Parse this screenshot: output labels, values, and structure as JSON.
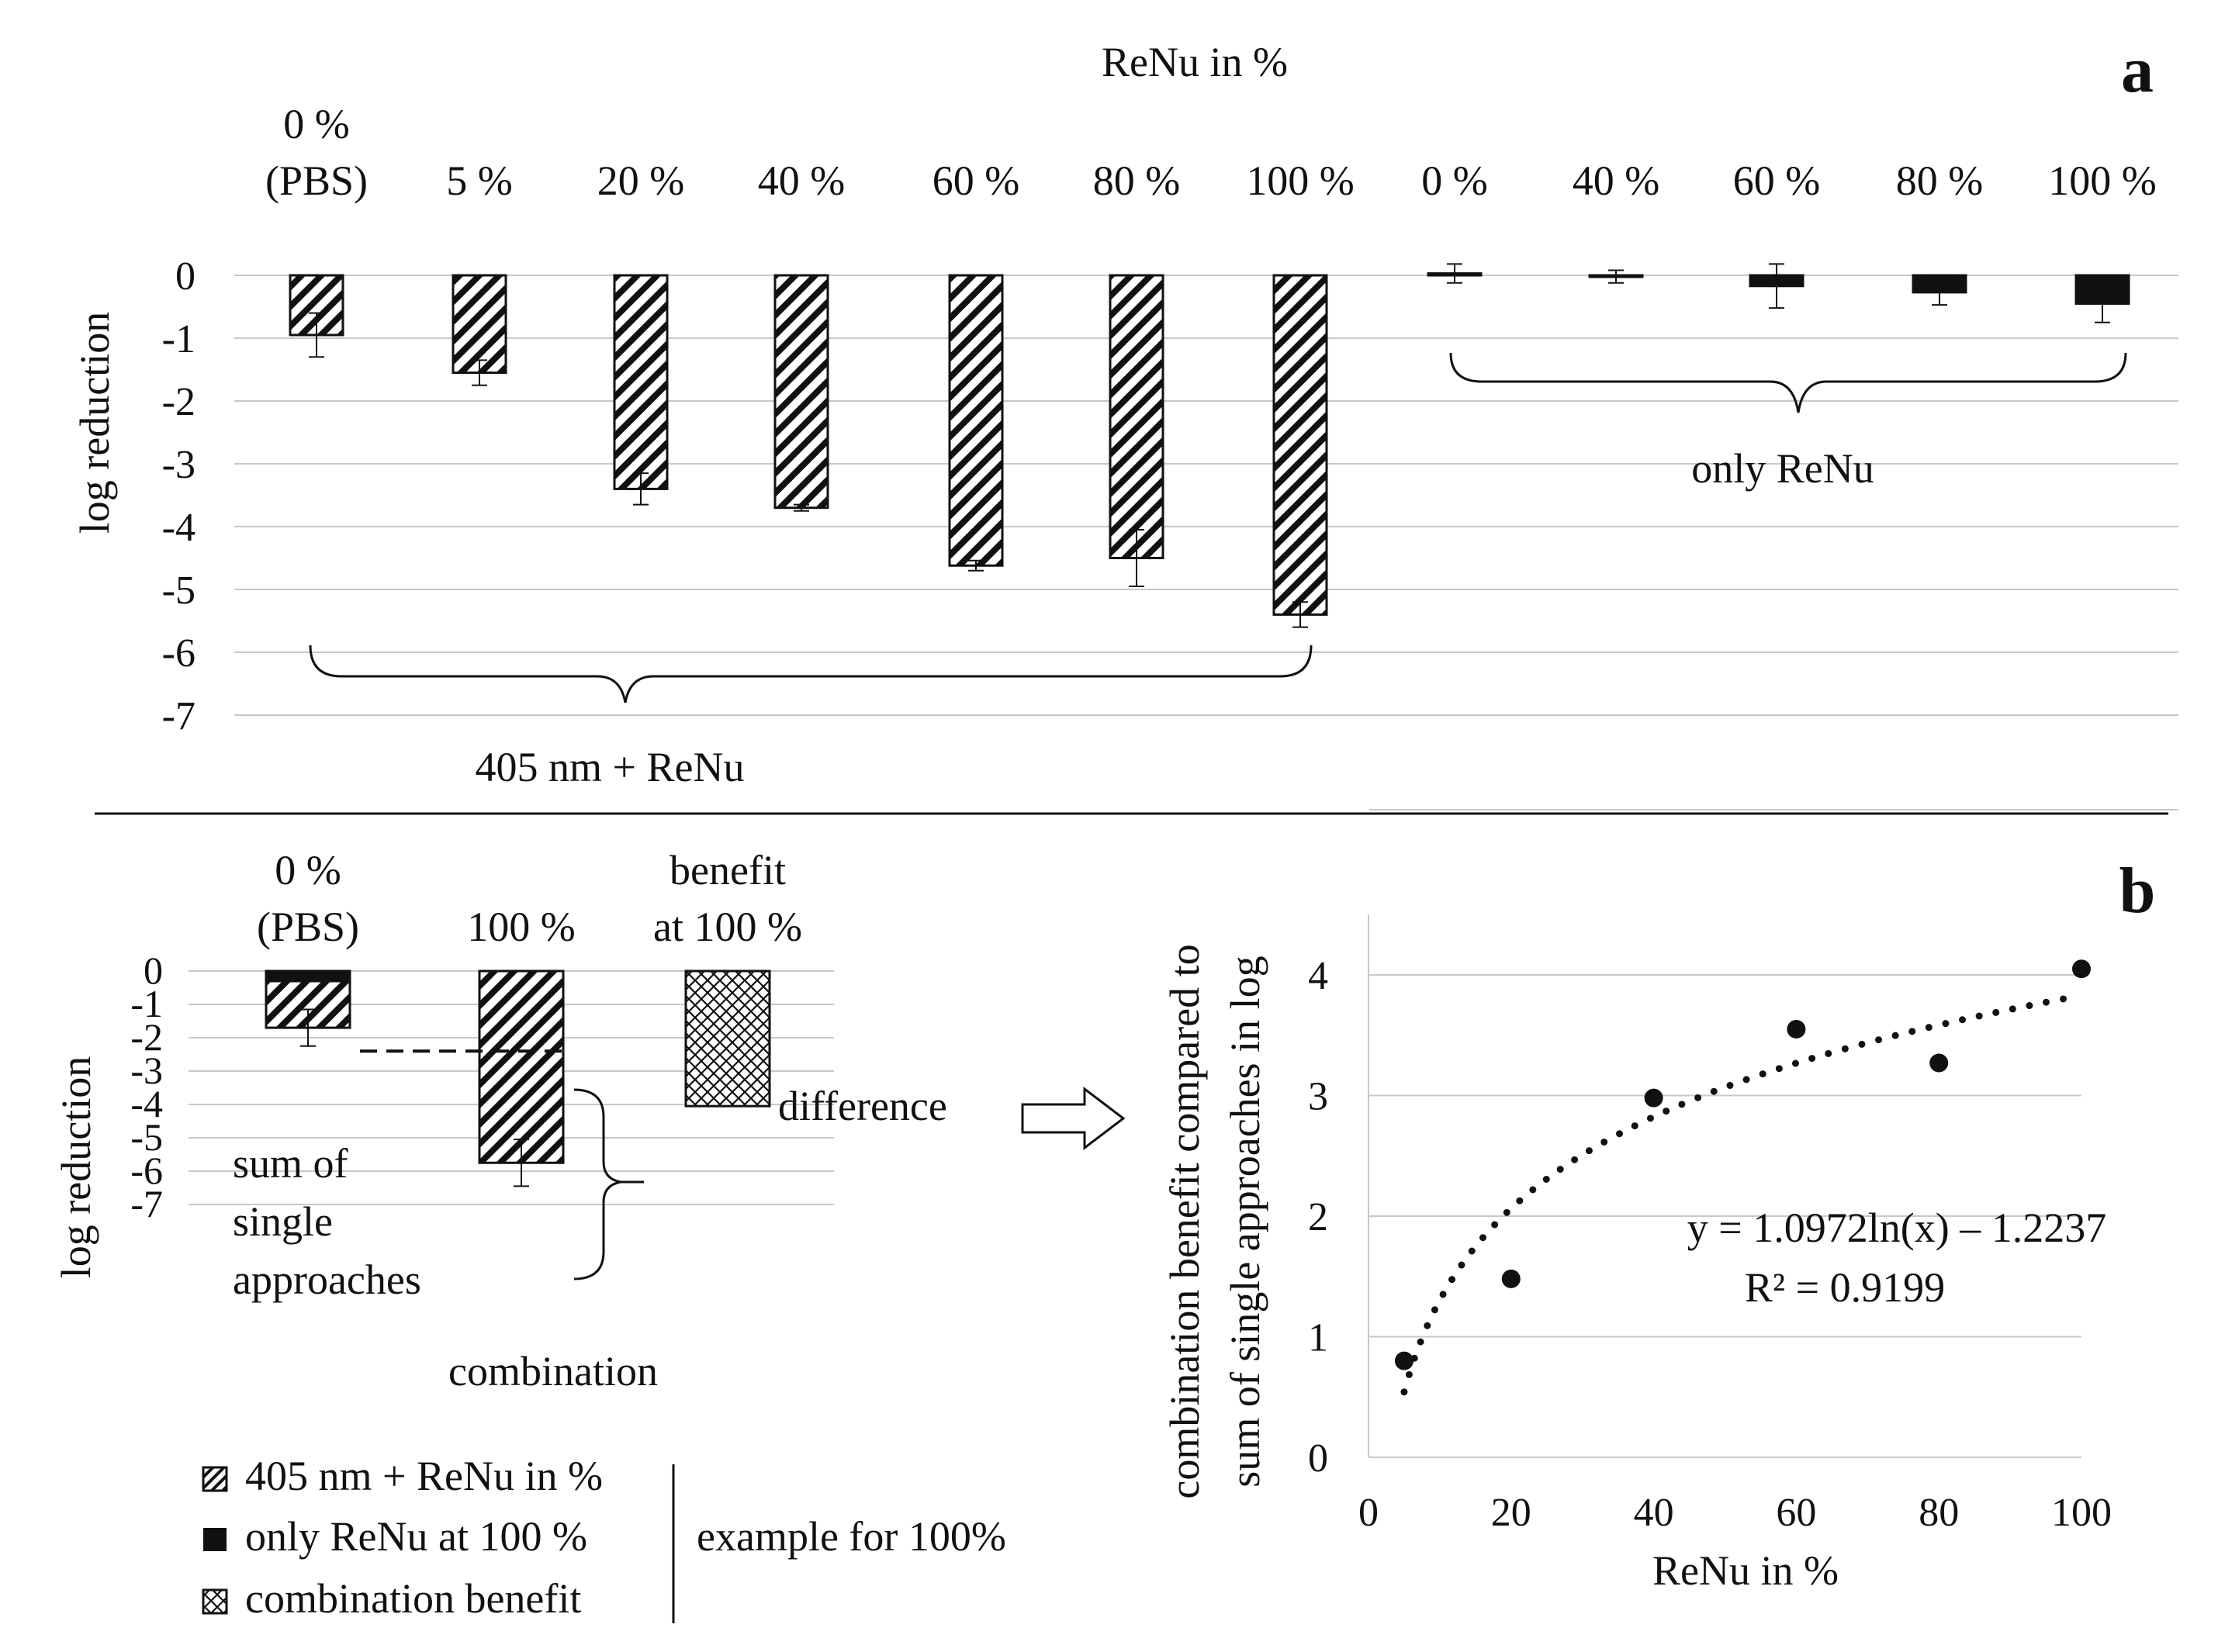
{
  "colors": {
    "ink": "#111111",
    "grid": "#c8c8c8",
    "background": "#ffffff"
  },
  "chart_data": [
    {
      "panel": "a",
      "type": "bar",
      "title": "ReNu in %",
      "panel_label": "a",
      "ylabel": "log reduction",
      "ylim": [
        -7,
        0
      ],
      "yticks": [
        0,
        -1,
        -2,
        -3,
        -4,
        -5,
        -6,
        -7
      ],
      "grid": true,
      "groups": [
        {
          "name": "405 nm + ReNu",
          "pattern": "hatch",
          "categories": [
            "0 %\n(PBS)",
            "5 %",
            "20 %",
            "40 %",
            "60 %",
            "80 %",
            "100 %"
          ],
          "values": [
            -0.95,
            -1.55,
            -3.4,
            -3.7,
            -4.62,
            -4.5,
            -5.4
          ],
          "errors": [
            0.35,
            0.2,
            0.25,
            0.05,
            0.08,
            0.45,
            0.2
          ]
        },
        {
          "name": "only ReNu",
          "pattern": "solid",
          "categories": [
            "0 %",
            "40 %",
            "60 %",
            "80 %",
            "100 %"
          ],
          "values": [
            0.03,
            -0.02,
            -0.17,
            -0.27,
            -0.45
          ],
          "errors": [
            0.15,
            0.1,
            0.35,
            0.2,
            0.3
          ]
        }
      ]
    },
    {
      "panel": "b-left",
      "type": "bar",
      "ylabel": "log reduction",
      "ylim": [
        -7,
        0
      ],
      "yticks": [
        0,
        -1,
        -2,
        -3,
        -4,
        -5,
        -6,
        -7
      ],
      "grid": true,
      "categories": [
        "0 %\n(PBS)",
        "100 %",
        "benefit\nat 100 %"
      ],
      "bars": [
        {
          "category": "0 %\n(PBS)",
          "solid_part": -0.3,
          "hatch_part": -1.4,
          "total": -1.7,
          "error": 0.55
        },
        {
          "category": "100 %",
          "value": -5.75,
          "error": 0.7,
          "pattern": "hatch"
        },
        {
          "category": "benefit\nat 100 %",
          "value": -4.05,
          "pattern": "crosshatch"
        }
      ],
      "sum_line_value": -2.4,
      "annotations": [
        "sum of\nsingle\napproaches",
        "difference",
        "combination"
      ]
    },
    {
      "panel": "b-right",
      "type": "scatter",
      "panel_label": "b",
      "xlabel": "ReNu in %",
      "ylabel": "combination benefit compared to\nsum of single approaches in log",
      "xlim": [
        0,
        100
      ],
      "ylim": [
        0,
        4.5
      ],
      "xticks": [
        0,
        20,
        40,
        60,
        80,
        100
      ],
      "yticks": [
        0,
        1,
        2,
        3,
        4
      ],
      "grid": true,
      "points": {
        "x": [
          5,
          20,
          40,
          60,
          80,
          100
        ],
        "y": [
          0.8,
          1.48,
          2.98,
          3.55,
          3.27,
          4.05
        ]
      },
      "trendline": {
        "type": "logarithmic",
        "a": 1.0972,
        "b": -1.2237,
        "x_from": 5,
        "x_to": 99
      },
      "equation": "y = 1.0972ln(x) – 1.2237",
      "r_squared": "R² = 0.9199"
    }
  ],
  "legend": {
    "items": [
      {
        "label": "405 nm + ReNu in %",
        "pattern": "hatch"
      },
      {
        "label": "only ReNu at 100 %",
        "pattern": "solid"
      },
      {
        "label": "combination  benefit",
        "pattern": "crosshatch"
      }
    ],
    "note": "example  for 100%"
  }
}
